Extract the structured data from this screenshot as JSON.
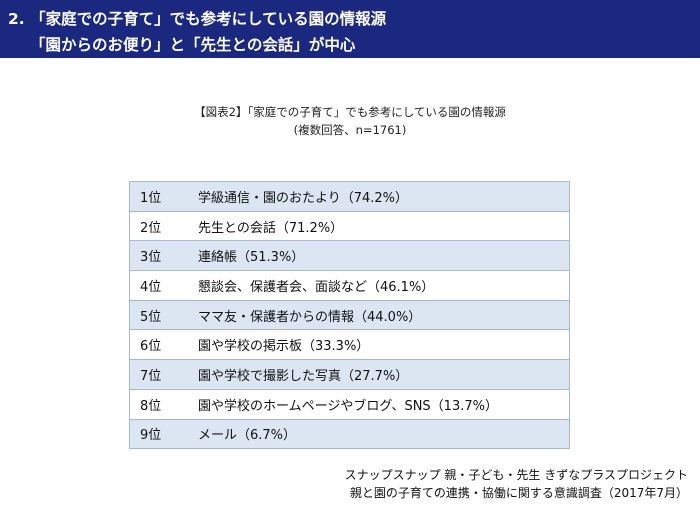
{
  "header": {
    "line1": "2. 「家庭での子育て」でも参考にしている園の情報源",
    "line2": "「園からのお便り」と「先生との会話」が中心"
  },
  "chart": {
    "title": "【図表2】「家庭での子育て」でも参考にしている園の情報源",
    "subtitle": "(複数回答、n=1761)"
  },
  "table": {
    "rows": [
      {
        "rank": "1位",
        "text": "学級通信・園のおたより（74.2%）"
      },
      {
        "rank": "2位",
        "text": "先生との会話（71.2%）"
      },
      {
        "rank": "3位",
        "text": "連絡帳（51.3%）"
      },
      {
        "rank": "4位",
        "text": "懇談会、保護者会、面談など（46.1%）"
      },
      {
        "rank": "5位",
        "text": "ママ友・保護者からの情報（44.0%）"
      },
      {
        "rank": "6位",
        "text": "園や学校の掲示板（33.3%）"
      },
      {
        "rank": "7位",
        "text": "園や学校で撮影した写真（27.7%）"
      },
      {
        "rank": "8位",
        "text": "園や学校のホームページやブログ、SNS（13.7%）"
      },
      {
        "rank": "9位",
        "text": "メール（6.7%）"
      }
    ]
  },
  "source": {
    "line1": "スナップスナップ 親・子ども・先生 きずなプラスプロジェクト",
    "line2": "親と園の子育ての連携・協働に関する意識調査（2017年7月）"
  },
  "colors": {
    "banner": "#1a2880",
    "row_alt": "#dce6f2",
    "border": "#a9b9d0"
  }
}
